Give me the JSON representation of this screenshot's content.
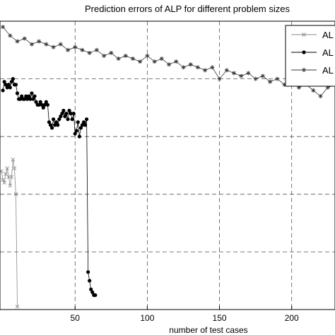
{
  "chart_data": {
    "type": "line",
    "title": "Prediction errors of ALP for different problem sizes",
    "xlabel": "number of test cases",
    "ylabel": "",
    "xlim": [
      -2,
      230
    ],
    "ylim": [
      0,
      1
    ],
    "xticks": [
      50,
      100,
      150,
      200
    ],
    "grid": true,
    "legend_position": "top-right",
    "series": [
      {
        "name": "AL",
        "marker": "x",
        "color": "#8a8a8a",
        "x": [
          -1,
          0,
          1,
          2,
          3,
          4,
          5,
          6,
          7,
          8,
          9,
          10
        ],
        "y": [
          0.48,
          0.45,
          0.44,
          0.47,
          0.49,
          0.46,
          0.43,
          0.46,
          0.52,
          0.49,
          0.4,
          0.01
        ]
      },
      {
        "name": "AL",
        "marker": "dot",
        "color": "#000000",
        "x": [
          0,
          1,
          2,
          3,
          4,
          5,
          6,
          7,
          8,
          9,
          10,
          11,
          12,
          13,
          14,
          15,
          16,
          17,
          18,
          19,
          20,
          21,
          22,
          23,
          24,
          25,
          26,
          27,
          28,
          29,
          30,
          31,
          32,
          33,
          34,
          35,
          36,
          37,
          38,
          39,
          40,
          41,
          42,
          43,
          44,
          45,
          46,
          47,
          48,
          49,
          50,
          51,
          52,
          53,
          54,
          55,
          56,
          57,
          58,
          59,
          60,
          61,
          62,
          63,
          64
        ],
        "y": [
          0.76,
          0.79,
          0.78,
          0.77,
          0.78,
          0.77,
          0.79,
          0.8,
          0.78,
          0.78,
          0.75,
          0.73,
          0.73,
          0.74,
          0.73,
          0.73,
          0.74,
          0.73,
          0.74,
          0.73,
          0.75,
          0.73,
          0.74,
          0.72,
          0.71,
          0.71,
          0.72,
          0.71,
          0.7,
          0.71,
          0.72,
          0.71,
          0.65,
          0.64,
          0.63,
          0.66,
          0.64,
          0.65,
          0.64,
          0.66,
          0.67,
          0.68,
          0.69,
          0.67,
          0.68,
          0.66,
          0.69,
          0.68,
          0.66,
          0.68,
          0.61,
          0.62,
          0.65,
          0.6,
          0.63,
          0.64,
          0.65,
          0.64,
          0.66,
          0.13,
          0.1,
          0.07,
          0.06,
          0.05,
          0.05
        ]
      },
      {
        "name": "AL",
        "marker": "star",
        "color": "#3a3a3a",
        "x": [
          0,
          5,
          10,
          15,
          20,
          25,
          30,
          35,
          40,
          45,
          50,
          55,
          60,
          65,
          70,
          75,
          80,
          85,
          90,
          95,
          100,
          105,
          110,
          115,
          120,
          125,
          130,
          135,
          140,
          145,
          150,
          155,
          160,
          165,
          170,
          175,
          180,
          185,
          190,
          195,
          200,
          205,
          210,
          215,
          220,
          225,
          230
        ],
        "y": [
          0.98,
          0.95,
          0.93,
          0.94,
          0.92,
          0.93,
          0.92,
          0.91,
          0.92,
          0.9,
          0.91,
          0.9,
          0.89,
          0.9,
          0.88,
          0.89,
          0.87,
          0.88,
          0.87,
          0.86,
          0.88,
          0.86,
          0.87,
          0.85,
          0.86,
          0.84,
          0.85,
          0.84,
          0.83,
          0.84,
          0.8,
          0.83,
          0.82,
          0.81,
          0.82,
          0.8,
          0.81,
          0.79,
          0.8,
          0.78,
          0.79,
          0.77,
          0.78,
          0.76,
          0.74,
          0.77,
          0.78
        ]
      }
    ]
  }
}
